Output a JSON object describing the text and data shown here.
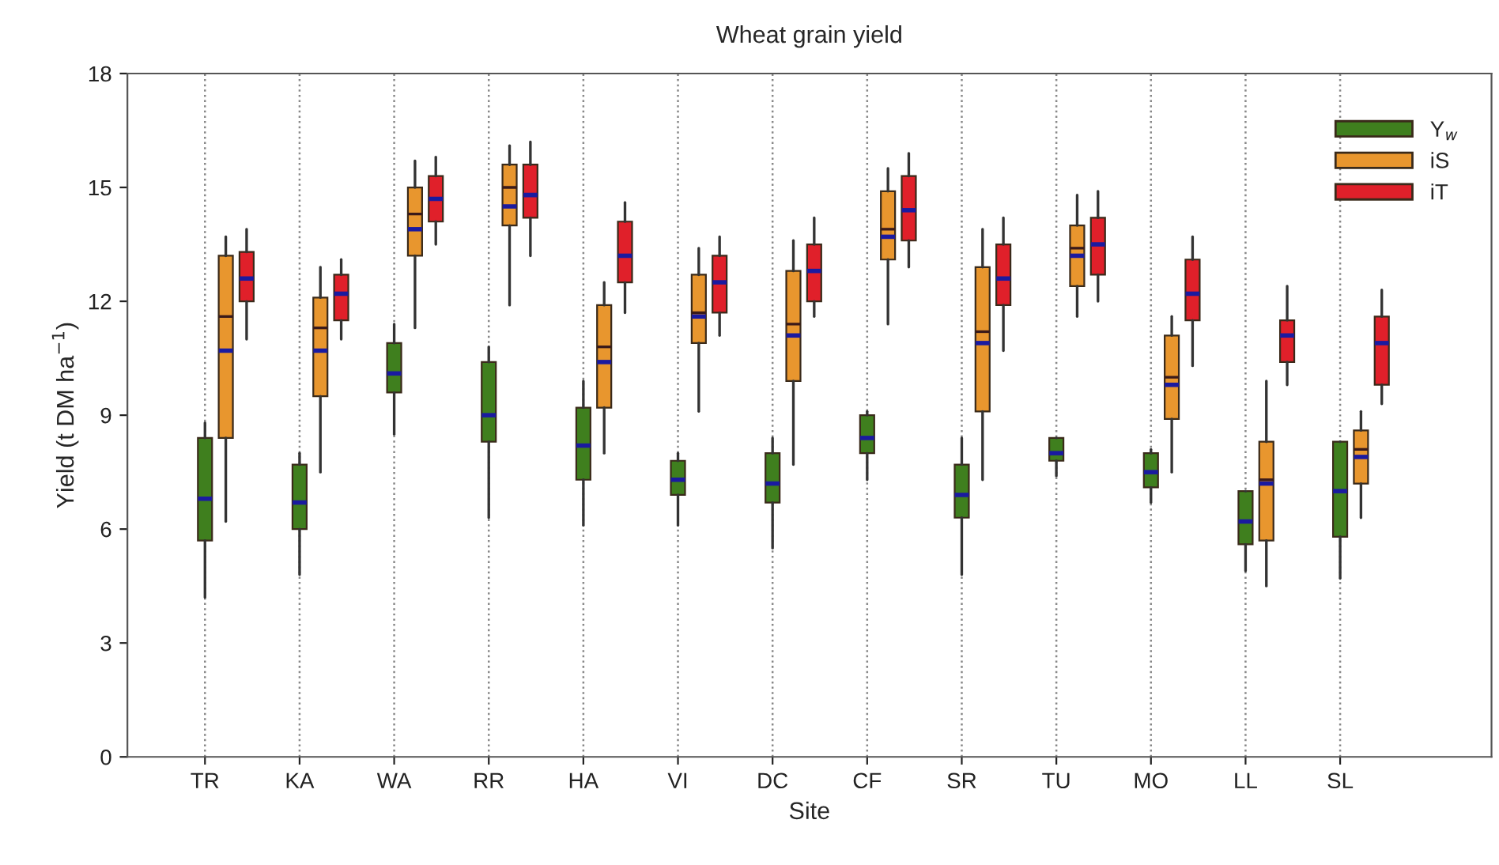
{
  "chart_data": {
    "type": "box",
    "title": "Wheat grain yield",
    "xlabel": "Site",
    "ylabel": "Yield (t DM ha$^{−1}$)",
    "categories": [
      "TR",
      "KA",
      "WA",
      "RR",
      "HA",
      "VI",
      "DC",
      "CF",
      "SR",
      "TU",
      "MO",
      "LL",
      "SL"
    ],
    "ylim": [
      0,
      18
    ],
    "yticks": [
      0,
      3,
      6,
      9,
      12,
      15,
      18
    ],
    "grid": "x",
    "legend": "top right",
    "series": [
      {
        "name": "Y$_{w}$",
        "color": "#3f7f1e",
        "boxes": [
          {
            "low": 4.2,
            "q1": 5.7,
            "median": 6.8,
            "q3": 8.4,
            "high": 8.8
          },
          {
            "low": 4.8,
            "q1": 6.0,
            "median": 6.7,
            "q3": 7.7,
            "high": 8.0
          },
          {
            "low": 8.5,
            "q1": 9.6,
            "median": 10.1,
            "q3": 10.9,
            "high": 11.4
          },
          {
            "low": 6.3,
            "q1": 8.3,
            "median": 9.0,
            "q3": 10.4,
            "high": 10.8
          },
          {
            "low": 6.1,
            "q1": 7.3,
            "median": 8.2,
            "q3": 9.2,
            "high": 9.9
          },
          {
            "low": 6.1,
            "q1": 6.9,
            "median": 7.3,
            "q3": 7.8,
            "high": 8.0
          },
          {
            "low": 5.5,
            "q1": 6.7,
            "median": 7.2,
            "q3": 8.0,
            "high": 8.4
          },
          {
            "low": 7.3,
            "q1": 8.0,
            "median": 8.4,
            "q3": 9.0,
            "high": 9.1
          },
          {
            "low": 4.8,
            "q1": 6.3,
            "median": 6.9,
            "q3": 7.7,
            "high": 8.4
          },
          {
            "low": 7.4,
            "q1": 7.8,
            "median": 8.0,
            "q3": 8.4,
            "high": 8.4
          },
          {
            "low": 6.7,
            "q1": 7.1,
            "median": 7.5,
            "q3": 8.0,
            "high": 8.1
          },
          {
            "low": 4.9,
            "q1": 5.6,
            "median": 6.2,
            "q3": 7.0,
            "high": 7.0
          },
          {
            "low": 4.7,
            "q1": 5.8,
            "median": 7.0,
            "q3": 8.3,
            "high": 8.3
          }
        ]
      },
      {
        "name": "iS",
        "color": "#e8962e",
        "boxes": [
          {
            "low": 6.2,
            "q1": 8.4,
            "median": 10.7,
            "mean": 11.6,
            "q3": 13.2,
            "high": 13.7
          },
          {
            "low": 7.5,
            "q1": 9.5,
            "median": 10.7,
            "mean": 11.3,
            "q3": 12.1,
            "high": 12.9
          },
          {
            "low": 11.3,
            "q1": 13.2,
            "median": 13.9,
            "mean": 14.3,
            "q3": 15.0,
            "high": 15.7
          },
          {
            "low": 11.9,
            "q1": 14.0,
            "median": 14.5,
            "mean": 15.0,
            "q3": 15.6,
            "high": 16.1
          },
          {
            "low": 8.0,
            "q1": 9.2,
            "median": 10.4,
            "mean": 10.8,
            "q3": 11.9,
            "high": 12.5
          },
          {
            "low": 9.1,
            "q1": 10.9,
            "median": 11.6,
            "mean": 11.7,
            "q3": 12.7,
            "high": 13.4
          },
          {
            "low": 7.7,
            "q1": 9.9,
            "median": 11.1,
            "mean": 11.4,
            "q3": 12.8,
            "high": 13.6
          },
          {
            "low": 11.4,
            "q1": 13.1,
            "median": 13.7,
            "mean": 13.9,
            "q3": 14.9,
            "high": 15.5
          },
          {
            "low": 7.3,
            "q1": 9.1,
            "median": 10.9,
            "mean": 11.2,
            "q3": 12.9,
            "high": 13.9
          },
          {
            "low": 11.6,
            "q1": 12.4,
            "median": 13.2,
            "mean": 13.4,
            "q3": 14.0,
            "high": 14.8
          },
          {
            "low": 7.5,
            "q1": 8.9,
            "median": 9.8,
            "mean": 10.0,
            "q3": 11.1,
            "high": 11.6
          },
          {
            "low": 4.5,
            "q1": 5.7,
            "median": 7.2,
            "mean": 7.3,
            "q3": 8.3,
            "high": 9.9
          },
          {
            "low": 6.3,
            "q1": 7.2,
            "median": 7.9,
            "mean": 8.1,
            "q3": 8.6,
            "high": 9.1
          }
        ]
      },
      {
        "name": "iT",
        "color": "#e0202a",
        "boxes": [
          {
            "low": 11.0,
            "q1": 12.0,
            "median": 12.6,
            "q3": 13.3,
            "high": 13.9
          },
          {
            "low": 11.0,
            "q1": 11.5,
            "median": 12.2,
            "q3": 12.7,
            "high": 13.1
          },
          {
            "low": 13.5,
            "q1": 14.1,
            "median": 14.7,
            "q3": 15.3,
            "high": 15.8
          },
          {
            "low": 13.2,
            "q1": 14.2,
            "median": 14.8,
            "q3": 15.6,
            "high": 16.2
          },
          {
            "low": 11.7,
            "q1": 12.5,
            "median": 13.2,
            "q3": 14.1,
            "high": 14.6
          },
          {
            "low": 11.1,
            "q1": 11.7,
            "median": 12.5,
            "q3": 13.2,
            "high": 13.7
          },
          {
            "low": 11.6,
            "q1": 12.0,
            "median": 12.8,
            "q3": 13.5,
            "high": 14.2
          },
          {
            "low": 12.9,
            "q1": 13.6,
            "median": 14.4,
            "q3": 15.3,
            "high": 15.9
          },
          {
            "low": 10.7,
            "q1": 11.9,
            "median": 12.6,
            "q3": 13.5,
            "high": 14.2
          },
          {
            "low": 12.0,
            "q1": 12.7,
            "median": 13.5,
            "q3": 14.2,
            "high": 14.9
          },
          {
            "low": 10.3,
            "q1": 11.5,
            "median": 12.2,
            "q3": 13.1,
            "high": 13.7
          },
          {
            "low": 9.8,
            "q1": 10.4,
            "median": 11.1,
            "q3": 11.5,
            "high": 12.4
          },
          {
            "low": 9.3,
            "q1": 9.8,
            "median": 10.9,
            "q3": 11.6,
            "high": 12.3
          }
        ]
      }
    ]
  }
}
